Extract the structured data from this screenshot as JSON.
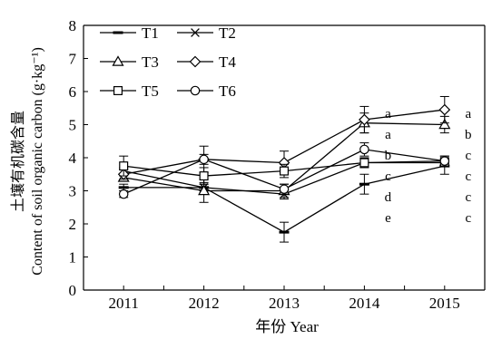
{
  "chart_data": {
    "type": "line",
    "xlabel": "年份 Year",
    "ylabel": "土壤有机碳含量",
    "ylabel2": "Content of soil organic carbon (g·kg⁻¹)",
    "x": [
      "2011",
      "2012",
      "2013",
      "2014",
      "2015"
    ],
    "ylim": [
      0,
      8
    ],
    "yticks": [
      "0",
      "1",
      "2",
      "3",
      "4",
      "5",
      "6",
      "7",
      "8"
    ],
    "grid": false,
    "legend_position": "top-left",
    "series": [
      {
        "name": "T1",
        "marker": "dash",
        "values": [
          3.1,
          3.1,
          1.75,
          3.2,
          3.75
        ],
        "errors": [
          0.1,
          0.1,
          0.3,
          0.3,
          0.25
        ]
      },
      {
        "name": "T2",
        "marker": "cross",
        "values": [
          3.6,
          3.1,
          2.9,
          3.85,
          3.9
        ],
        "errors": [
          0.1,
          0.15,
          0.15,
          0.15,
          0.15
        ]
      },
      {
        "name": "T3",
        "marker": "triangle",
        "values": [
          3.4,
          3.0,
          3.0,
          5.05,
          5.0
        ],
        "errors": [
          0.1,
          0.35,
          0.2,
          0.3,
          0.25
        ]
      },
      {
        "name": "T4",
        "marker": "diamond",
        "values": [
          3.5,
          3.95,
          3.85,
          5.15,
          5.45
        ],
        "errors": [
          0.15,
          0.4,
          0.35,
          0.4,
          0.4
        ]
      },
      {
        "name": "T5",
        "marker": "square",
        "values": [
          3.75,
          3.45,
          3.6,
          3.85,
          3.85
        ],
        "errors": [
          0.3,
          0.25,
          0.2,
          0.15,
          0.1
        ]
      },
      {
        "name": "T6",
        "marker": "circle",
        "values": [
          2.9,
          3.95,
          3.05,
          4.25,
          3.9
        ],
        "errors": [
          0.1,
          0.15,
          0.15,
          0.2,
          0.15
        ]
      }
    ],
    "annotations": [
      {
        "x": "2014",
        "letters": [
          "a",
          "a",
          "b",
          "c",
          "d",
          "e"
        ]
      },
      {
        "x": "2015",
        "letters": [
          "a",
          "b",
          "c",
          "c",
          "c",
          "c"
        ]
      }
    ]
  }
}
